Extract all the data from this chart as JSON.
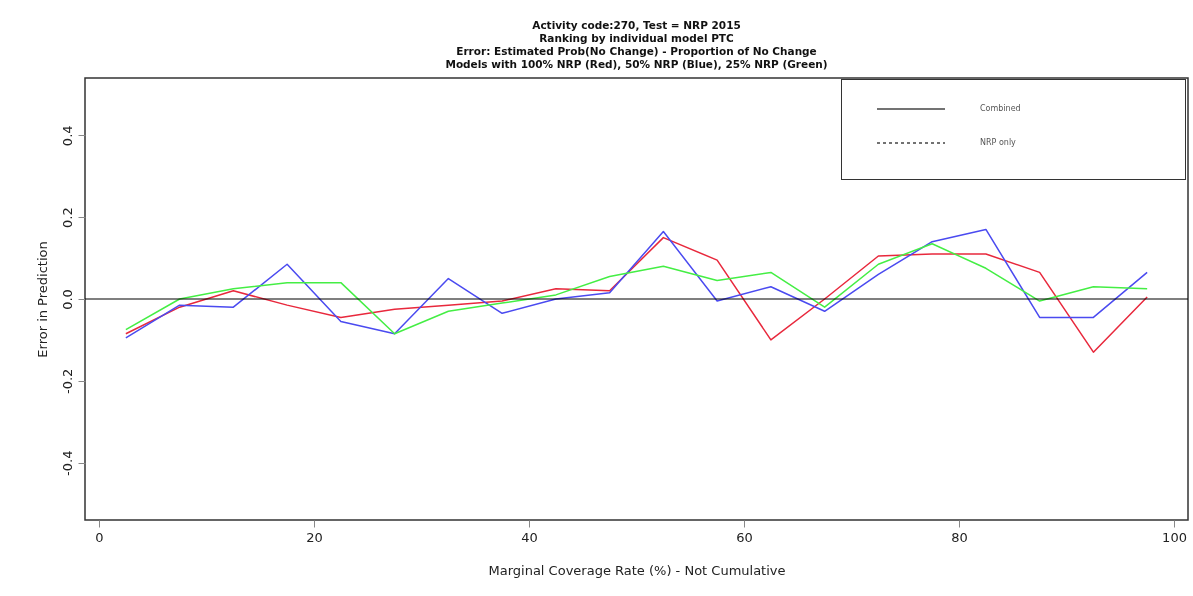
{
  "chart_data": {
    "type": "line",
    "title": "Activity code:270, Test =  NRP 2015\nRanking by individual model PTC\nError: Estimated  Prob(No Change) - Proportion of No Change\nModels with 100% NRP (Red), 50% NRP (Blue), 25% NRP (Green)",
    "xlabel": "Marginal Coverage Rate (%) - Not Cumulative",
    "ylabel": "Error in Prediction",
    "x": [
      2.5,
      7.5,
      12.5,
      17.5,
      22.5,
      27.5,
      32.5,
      37.5,
      42.5,
      47.5,
      52.5,
      57.5,
      62.5,
      67.5,
      72.5,
      77.5,
      82.5,
      87.5,
      92.5,
      97.5
    ],
    "series": [
      {
        "color": "#e8283c",
        "values": [
          -0.085,
          -0.02,
          0.02,
          -0.015,
          -0.045,
          -0.025,
          -0.015,
          -0.005,
          0.025,
          0.02,
          0.15,
          0.095,
          -0.1,
          0.0,
          0.105,
          0.11,
          0.11,
          0.065,
          -0.13,
          0.005
        ]
      },
      {
        "color": "#4a4af0",
        "values": [
          -0.095,
          -0.015,
          -0.02,
          0.085,
          -0.055,
          -0.085,
          0.05,
          -0.035,
          0.0,
          0.015,
          0.165,
          -0.005,
          0.03,
          -0.03,
          0.06,
          0.14,
          0.17,
          -0.045,
          -0.045,
          0.065
        ]
      },
      {
        "color": "#44ee44",
        "values": [
          -0.075,
          0.0,
          0.025,
          0.04,
          0.04,
          -0.085,
          -0.03,
          -0.01,
          0.01,
          0.055,
          0.08,
          0.045,
          0.065,
          -0.02,
          0.085,
          0.135,
          0.075,
          -0.005,
          0.03,
          0.025
        ]
      }
    ],
    "xlim": [
      -1.3,
      101.3
    ],
    "xticks": [
      0,
      20,
      40,
      60,
      80,
      100
    ],
    "ylim": [
      -0.54,
      0.54
    ],
    "yticks": [
      -0.4,
      -0.2,
      {
        "value": 0,
        "label": "0.0"
      },
      0.2,
      0.4
    ],
    "ref_lines": [
      {
        "axis": "y",
        "value": 0,
        "color": "#000000"
      }
    ],
    "annotations": [
      "Combined",
      "NRP only"
    ]
  }
}
